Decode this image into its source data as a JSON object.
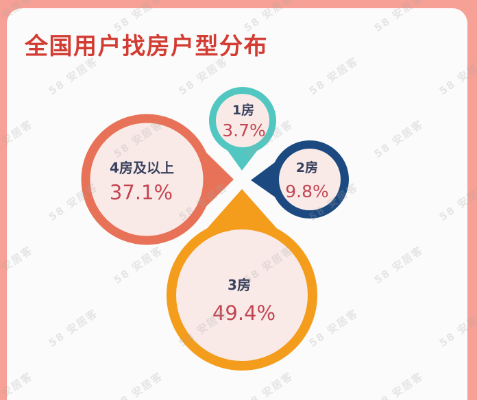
{
  "title": "全国用户找房户型分布",
  "watermark": {
    "text": "58 安居客"
  },
  "colors": {
    "background": "#F7A095",
    "card": "#FAFBFA",
    "title": "#D23C33",
    "segment_label": "#39415F",
    "segment_value": "#C34553",
    "circle_inner_fill": "#F9EAE7"
  },
  "chart_data": {
    "type": "pie",
    "title": "全国用户找房户型分布",
    "value_unit": "%",
    "layout": "four petal circles (map-pin shapes) converging to a central point, circle size proportional to value",
    "categories": [
      "1房",
      "2房",
      "3房",
      "4房及以上"
    ],
    "values": [
      3.7,
      9.8,
      49.4,
      37.1
    ],
    "segments": [
      {
        "label": "1房",
        "value": 3.7,
        "value_text": "3.7%",
        "color": "#52C7C1",
        "position": "top"
      },
      {
        "label": "2房",
        "value": 9.8,
        "value_text": "9.8%",
        "color": "#1C4A80",
        "position": "right"
      },
      {
        "label": "3房",
        "value": 49.4,
        "value_text": "49.4%",
        "color": "#F49C1C",
        "position": "bottom"
      },
      {
        "label": "4房及以上",
        "value": 37.1,
        "value_text": "37.1%",
        "color": "#E87257",
        "position": "left"
      }
    ]
  }
}
